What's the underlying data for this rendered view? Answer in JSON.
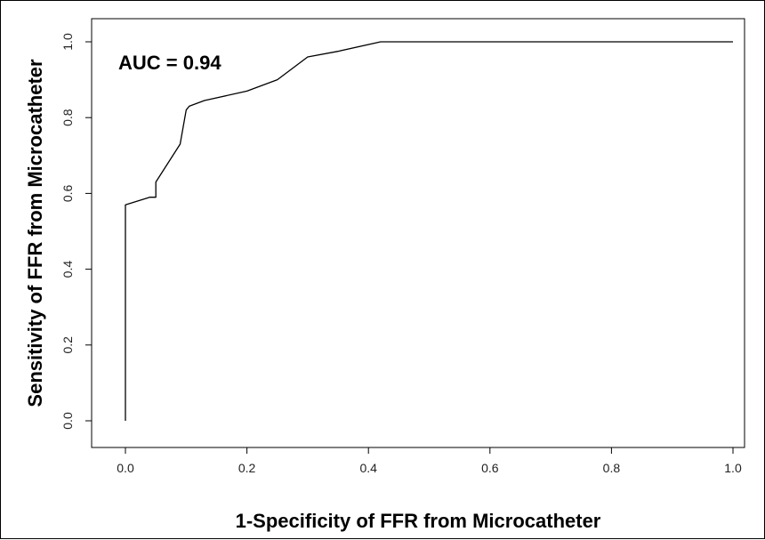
{
  "chart_data": {
    "type": "line",
    "xlabel": "1-Specificity of FFR from Microcatheter",
    "ylabel": "Sensitivity of FFR from Microcatheter",
    "annotation": "AUC = 0.94",
    "xlim": [
      0,
      1
    ],
    "ylim": [
      0,
      1
    ],
    "x_ticks": [
      "0.0",
      "0.2",
      "0.4",
      "0.6",
      "0.8",
      "1.0"
    ],
    "y_ticks": [
      "0.0",
      "0.2",
      "0.4",
      "0.6",
      "0.8",
      "1.0"
    ],
    "grid": false,
    "series": [
      {
        "x": [
          0.0,
          0.0,
          0.04,
          0.05,
          0.05,
          0.09,
          0.1,
          0.105,
          0.13,
          0.2,
          0.25,
          0.3,
          0.35,
          0.42,
          1.0
        ],
        "y": [
          0.0,
          0.57,
          0.59,
          0.59,
          0.63,
          0.73,
          0.82,
          0.83,
          0.845,
          0.87,
          0.9,
          0.96,
          0.975,
          1.0,
          1.0
        ]
      }
    ]
  }
}
